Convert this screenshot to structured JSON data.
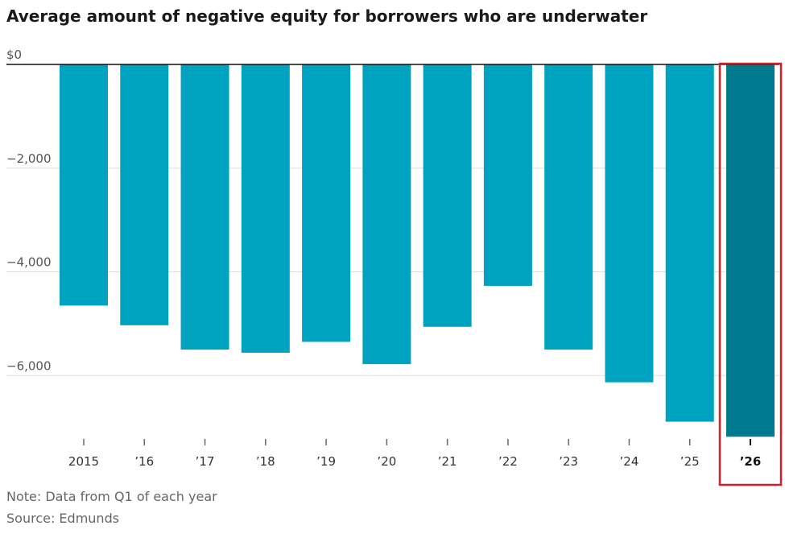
{
  "chart_data": {
    "type": "bar",
    "title": "Average amount of negative equity for borrowers who are underwater",
    "categories": [
      "2015",
      "’16",
      "’17",
      "’18",
      "’19",
      "’20",
      "’21",
      "’22",
      "’23",
      "’24",
      "’25",
      "’26"
    ],
    "values": [
      -4650,
      -5030,
      -5500,
      -5560,
      -5350,
      -5780,
      -5060,
      -4270,
      -5500,
      -6130,
      -6890,
      -7180
    ],
    "y_tick_values": [
      0,
      -2000,
      -4000,
      -6000
    ],
    "y_tick_labels": [
      "$0",
      "−2,000",
      "−4,000",
      "−6,000"
    ],
    "ylim": [
      -7300,
      0
    ],
    "highlight_index": 11,
    "colors": {
      "bar": "#00a3bf",
      "bar_highlight": "#007a8f",
      "highlight_box": "#d0202a",
      "zero_line": "#111111",
      "grid": "#dddddd"
    },
    "grid": true,
    "notes": [
      "Note: Data from Q1 of each year",
      "Source: Edmunds"
    ]
  }
}
